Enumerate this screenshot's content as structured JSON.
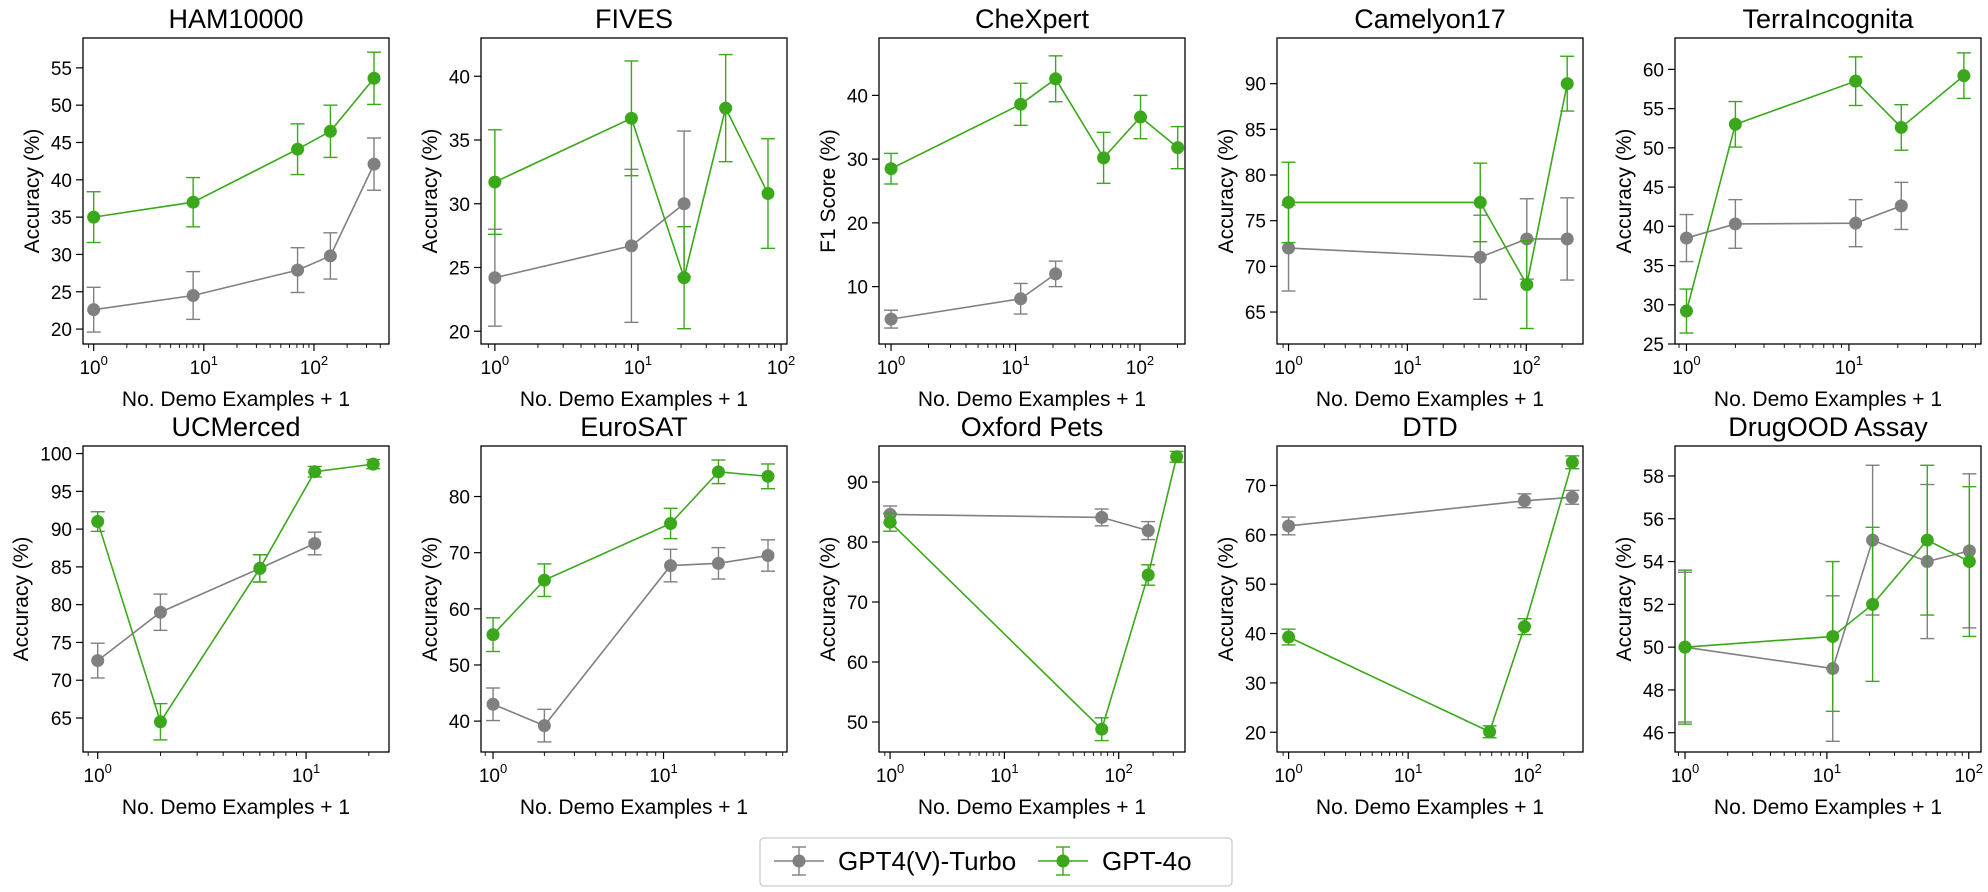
{
  "colors": {
    "gpt4v": "#808080",
    "gpt4o": "#3aa81a",
    "axis": "#000000",
    "legend_border": "#cccccc"
  },
  "legend": {
    "placement": "bottom-center",
    "entries": [
      "GPT4(V)-Turbo",
      "GPT-4o"
    ]
  },
  "chart_data": [
    {
      "type": "line",
      "title": "HAM10000",
      "xlabel": "No. Demo Examples + 1",
      "ylabel": "Accuracy (%)",
      "xscale": "log",
      "xlim": [
        0.8,
        480
      ],
      "ylim": [
        18,
        59
      ],
      "xticks": [
        1,
        10,
        100
      ],
      "xtick_labels": [
        "10^0",
        "10^1",
        "10^2"
      ],
      "yticks": [
        20,
        25,
        30,
        35,
        40,
        45,
        50,
        55
      ],
      "ytick_labels": [
        "20",
        "25",
        "30",
        "35",
        "40",
        "45",
        "50",
        "55"
      ],
      "series": [
        {
          "name": "GPT4(V)-Turbo",
          "color": "#808080",
          "x": [
            1,
            8,
            71,
            141,
            351
          ],
          "y": [
            22.6,
            24.5,
            27.9,
            29.8,
            42.1
          ],
          "err": [
            3.0,
            3.2,
            3.0,
            3.1,
            3.5
          ]
        },
        {
          "name": "GPT-4o",
          "color": "#3aa81a",
          "x": [
            1,
            8,
            71,
            141,
            351
          ],
          "y": [
            35.0,
            37.0,
            44.1,
            46.5,
            53.6
          ],
          "err": [
            3.4,
            3.3,
            3.4,
            3.5,
            3.5
          ]
        }
      ]
    },
    {
      "type": "line",
      "title": "FIVES",
      "xlabel": "No. Demo Examples + 1",
      "ylabel": "Accuracy (%)",
      "xscale": "log",
      "xlim": [
        0.8,
        110
      ],
      "ylim": [
        19,
        43
      ],
      "xticks": [
        1,
        10,
        100
      ],
      "xtick_labels": [
        "10^0",
        "10^1",
        "10^2"
      ],
      "yticks": [
        20,
        25,
        30,
        35,
        40
      ],
      "ytick_labels": [
        "20",
        "25",
        "30",
        "35",
        "40"
      ],
      "series": [
        {
          "name": "GPT4(V)-Turbo",
          "color": "#808080",
          "x": [
            1,
            9,
            21
          ],
          "y": [
            24.2,
            26.7,
            30.0
          ],
          "err": [
            3.8,
            6.0,
            5.7
          ]
        },
        {
          "name": "GPT-4o",
          "color": "#3aa81a",
          "x": [
            1,
            9,
            21,
            41,
            81
          ],
          "y": [
            31.7,
            36.7,
            24.2,
            37.5,
            30.8
          ],
          "err": [
            4.1,
            4.5,
            4.0,
            4.2,
            4.3
          ]
        }
      ]
    },
    {
      "type": "line",
      "title": "CheXpert",
      "xlabel": "No. Demo Examples + 1",
      "ylabel": "F1 Score (%)",
      "xscale": "log",
      "xlim": [
        0.8,
        230
      ],
      "ylim": [
        1,
        49
      ],
      "xticks": [
        1,
        10,
        100
      ],
      "xtick_labels": [
        "10^0",
        "10^1",
        "10^2"
      ],
      "yticks": [
        10,
        20,
        30,
        40
      ],
      "ytick_labels": [
        "10",
        "20",
        "30",
        "40"
      ],
      "series": [
        {
          "name": "GPT4(V)-Turbo",
          "color": "#808080",
          "x": [
            1,
            11,
            21
          ],
          "y": [
            4.9,
            8.1,
            12.0
          ],
          "err": [
            1.4,
            2.4,
            2.0
          ]
        },
        {
          "name": "GPT-4o",
          "color": "#3aa81a",
          "x": [
            1,
            11,
            21,
            51,
            101,
            201
          ],
          "y": [
            28.5,
            38.6,
            42.6,
            30.2,
            36.6,
            31.8
          ],
          "err": [
            2.4,
            3.3,
            3.6,
            4.0,
            3.4,
            3.3
          ]
        }
      ]
    },
    {
      "type": "line",
      "title": "Camelyon17",
      "xlabel": "No. Demo Examples + 1",
      "ylabel": "Accuracy (%)",
      "xscale": "log",
      "xlim": [
        0.8,
        300
      ],
      "ylim": [
        61.5,
        95
      ],
      "xticks": [
        1,
        10,
        100
      ],
      "xtick_labels": [
        "10^0",
        "10^1",
        "10^2"
      ],
      "yticks": [
        65,
        70,
        75,
        80,
        85,
        90
      ],
      "ytick_labels": [
        "65",
        "70",
        "75",
        "80",
        "85",
        "90"
      ],
      "series": [
        {
          "name": "GPT4(V)-Turbo",
          "color": "#808080",
          "x": [
            1,
            41,
            101,
            221
          ],
          "y": [
            72.0,
            71.0,
            73.0,
            73.0
          ],
          "err": [
            4.7,
            4.6,
            4.4,
            4.5
          ]
        },
        {
          "name": "GPT-4o",
          "color": "#3aa81a",
          "x": [
            1,
            41,
            101,
            221
          ],
          "y": [
            77.0,
            77.0,
            68.0,
            90.0
          ],
          "err": [
            4.4,
            4.3,
            4.8,
            3.0
          ]
        }
      ]
    },
    {
      "type": "line",
      "title": "TerraIncognita",
      "xlabel": "No. Demo Examples + 1",
      "ylabel": "Accuracy (%)",
      "xscale": "log",
      "xlim": [
        0.85,
        65
      ],
      "ylim": [
        25,
        64
      ],
      "xticks": [
        1,
        10
      ],
      "xtick_labels": [
        "10^0",
        "10^1"
      ],
      "yticks": [
        25,
        30,
        35,
        40,
        45,
        50,
        55,
        60
      ],
      "ytick_labels": [
        "25",
        "30",
        "35",
        "40",
        "45",
        "50",
        "55",
        "60"
      ],
      "series": [
        {
          "name": "GPT4(V)-Turbo",
          "color": "#808080",
          "x": [
            1,
            2,
            11,
            21
          ],
          "y": [
            38.5,
            40.3,
            40.4,
            42.6
          ],
          "err": [
            3.0,
            3.1,
            3.0,
            3.0
          ]
        },
        {
          "name": "GPT-4o",
          "color": "#3aa81a",
          "x": [
            1,
            2,
            11,
            21,
            51
          ],
          "y": [
            29.2,
            53.0,
            58.5,
            52.6,
            59.2
          ],
          "err": [
            2.8,
            2.9,
            3.1,
            2.9,
            2.9
          ]
        }
      ]
    },
    {
      "type": "line",
      "title": "UCMerced",
      "xlabel": "No. Demo Examples + 1",
      "ylabel": "Accuracy (%)",
      "xscale": "log",
      "xlim": [
        0.85,
        25
      ],
      "ylim": [
        60.5,
        101
      ],
      "xticks": [
        1,
        10
      ],
      "xtick_labels": [
        "10^0",
        "10^1"
      ],
      "yticks": [
        65,
        70,
        75,
        80,
        85,
        90,
        95,
        100
      ],
      "ytick_labels": [
        "65",
        "70",
        "75",
        "80",
        "85",
        "90",
        "95",
        "100"
      ],
      "series": [
        {
          "name": "GPT4(V)-Turbo",
          "color": "#808080",
          "x": [
            1,
            2,
            6,
            11
          ],
          "y": [
            72.6,
            79.0,
            84.8,
            88.1
          ],
          "err": [
            2.3,
            2.4,
            1.8,
            1.5
          ]
        },
        {
          "name": "GPT-4o",
          "color": "#3aa81a",
          "x": [
            1,
            2,
            6,
            11,
            21
          ],
          "y": [
            91.0,
            64.5,
            84.8,
            97.6,
            98.6
          ],
          "err": [
            1.3,
            2.4,
            1.8,
            0.7,
            0.6
          ]
        }
      ]
    },
    {
      "type": "line",
      "title": "EuroSAT",
      "xlabel": "No. Demo Examples + 1",
      "ylabel": "Accuracy (%)",
      "xscale": "log",
      "xlim": [
        0.85,
        53
      ],
      "ylim": [
        34.5,
        89
      ],
      "xticks": [
        1,
        10
      ],
      "xtick_labels": [
        "10^0",
        "10^1"
      ],
      "yticks": [
        40,
        50,
        60,
        70,
        80
      ],
      "ytick_labels": [
        "40",
        "50",
        "60",
        "70",
        "80"
      ],
      "series": [
        {
          "name": "GPT4(V)-Turbo",
          "color": "#808080",
          "x": [
            1,
            2,
            11,
            21,
            41
          ],
          "y": [
            43.0,
            39.2,
            67.7,
            68.1,
            69.5
          ],
          "err": [
            2.9,
            2.9,
            2.9,
            2.8,
            2.8
          ]
        },
        {
          "name": "GPT-4o",
          "color": "#3aa81a",
          "x": [
            1,
            2,
            11,
            21,
            41
          ],
          "y": [
            55.4,
            65.1,
            75.2,
            84.4,
            83.6
          ],
          "err": [
            3.0,
            2.9,
            2.7,
            2.1,
            2.2
          ]
        }
      ]
    },
    {
      "type": "line",
      "title": "Oxford Pets",
      "xlabel": "No. Demo Examples + 1",
      "ylabel": "Accuracy (%)",
      "xscale": "log",
      "xlim": [
        0.8,
        380
      ],
      "ylim": [
        45,
        96
      ],
      "xticks": [
        1,
        10,
        100
      ],
      "xtick_labels": [
        "10^0",
        "10^1",
        "10^2"
      ],
      "yticks": [
        50,
        60,
        70,
        80,
        90
      ],
      "ytick_labels": [
        "50",
        "60",
        "70",
        "80",
        "90"
      ],
      "series": [
        {
          "name": "GPT4(V)-Turbo",
          "color": "#808080",
          "x": [
            1,
            71,
            181
          ],
          "y": [
            84.6,
            84.1,
            81.9
          ],
          "err": [
            1.4,
            1.4,
            1.5
          ]
        },
        {
          "name": "GPT-4o",
          "color": "#3aa81a",
          "x": [
            1,
            71,
            181,
            321
          ],
          "y": [
            83.3,
            48.8,
            74.5,
            94.2
          ],
          "err": [
            1.5,
            1.9,
            1.7,
            0.9
          ]
        }
      ]
    },
    {
      "type": "line",
      "title": "DTD",
      "xlabel": "No. Demo Examples + 1",
      "ylabel": "Accuracy (%)",
      "xscale": "log",
      "xlim": [
        0.8,
        290
      ],
      "ylim": [
        16,
        78
      ],
      "xticks": [
        1,
        10,
        100
      ],
      "xtick_labels": [
        "10^0",
        "10^1",
        "10^2"
      ],
      "yticks": [
        20,
        30,
        40,
        50,
        60,
        70
      ],
      "ytick_labels": [
        "20",
        "30",
        "40",
        "50",
        "60",
        "70"
      ],
      "series": [
        {
          "name": "GPT4(V)-Turbo",
          "color": "#808080",
          "x": [
            1,
            94,
            236
          ],
          "y": [
            61.8,
            66.9,
            67.6
          ],
          "err": [
            1.8,
            1.4,
            1.4
          ]
        },
        {
          "name": "GPT-4o",
          "color": "#3aa81a",
          "x": [
            1,
            48,
            94,
            236
          ],
          "y": [
            39.3,
            20.1,
            41.4,
            74.7
          ],
          "err": [
            1.6,
            1.2,
            1.6,
            1.3
          ]
        }
      ]
    },
    {
      "type": "line",
      "title": "DrugOOD Assay",
      "xlabel": "No. Demo Examples + 1",
      "ylabel": "Accuracy (%)",
      "xscale": "log",
      "xlim": [
        0.85,
        122
      ],
      "ylim": [
        45.1,
        59.4
      ],
      "xticks": [
        1,
        10,
        100
      ],
      "xtick_labels": [
        "10^0",
        "10^1",
        "10^2"
      ],
      "yticks": [
        46,
        48,
        50,
        52,
        54,
        56,
        58
      ],
      "ytick_labels": [
        "46",
        "48",
        "50",
        "52",
        "54",
        "56",
        "58"
      ],
      "series": [
        {
          "name": "GPT4(V)-Turbo",
          "color": "#808080",
          "x": [
            1,
            11,
            21,
            51,
            101
          ],
          "y": [
            50.0,
            49.0,
            55.0,
            54.0,
            54.5
          ],
          "err": [
            3.5,
            3.4,
            3.5,
            3.6,
            3.6
          ]
        },
        {
          "name": "GPT-4o",
          "color": "#3aa81a",
          "x": [
            1,
            11,
            21,
            51,
            101
          ],
          "y": [
            50.0,
            50.5,
            52.0,
            55.0,
            54.0
          ],
          "err": [
            3.6,
            3.5,
            3.6,
            3.5,
            3.5
          ]
        }
      ]
    }
  ]
}
